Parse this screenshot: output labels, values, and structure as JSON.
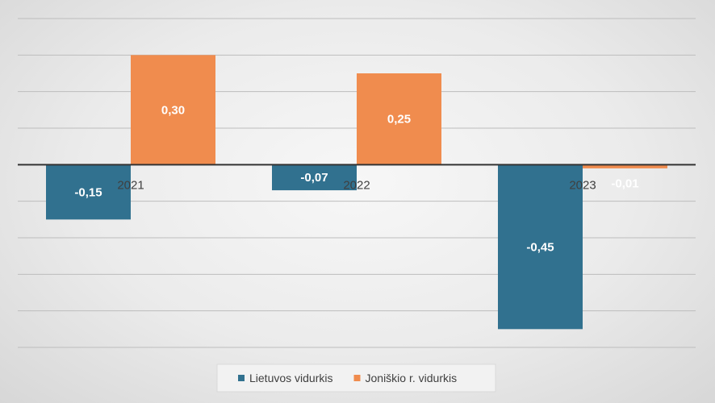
{
  "chart_data": {
    "type": "bar",
    "categories": [
      "2021",
      "2022",
      "2023"
    ],
    "series": [
      {
        "name": "Lietuvos vidurkis",
        "values": [
          -0.15,
          -0.07,
          -0.45
        ],
        "labels": [
          "-0,15",
          "-0,07",
          "-0,45"
        ],
        "color": "#31718f"
      },
      {
        "name": "Joniškio r. vidurkis",
        "values": [
          0.3,
          0.25,
          -0.01
        ],
        "labels": [
          "0,30",
          "0,25",
          "-0,01"
        ],
        "color": "#f08c4e"
      }
    ],
    "title": "",
    "xlabel": "",
    "ylabel": "",
    "ylim": [
      -0.5,
      0.4
    ],
    "grid": true,
    "legend": "bottom-center"
  }
}
